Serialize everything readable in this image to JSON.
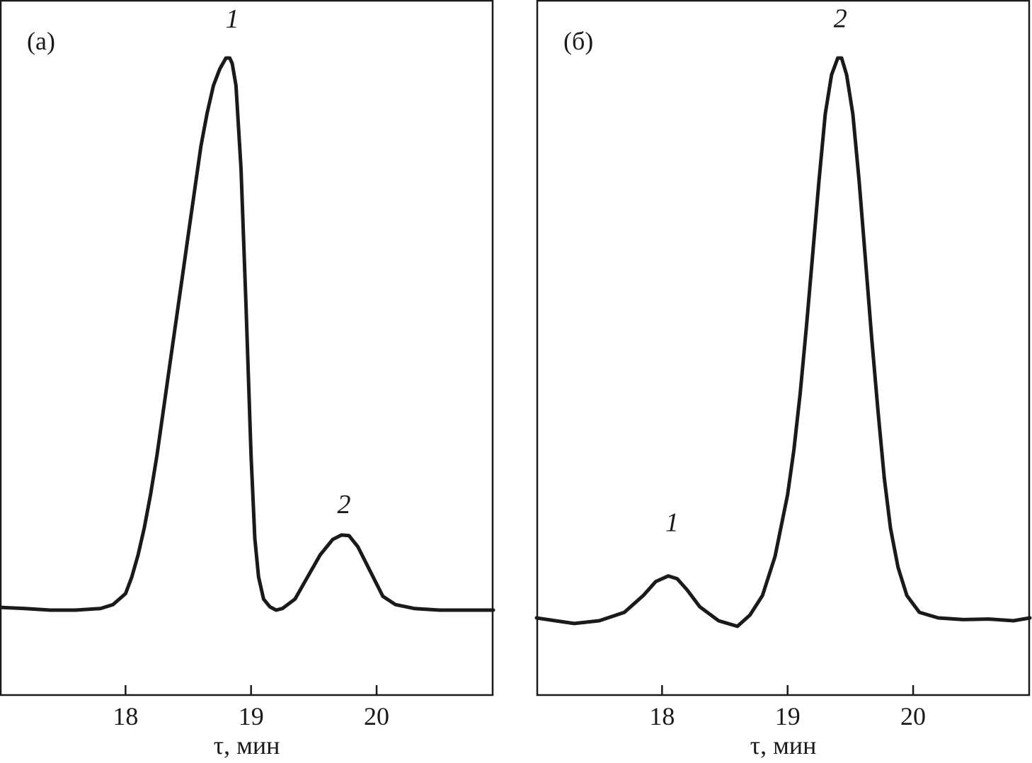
{
  "chart_data": [
    {
      "type": "line",
      "panel_label": "(а)",
      "xlabel": "τ, мин",
      "ylabel": "",
      "xlim": [
        17.0,
        20.93
      ],
      "ylim": [
        -0.22,
        1.0
      ],
      "x_ticks": [
        18,
        19,
        20
      ],
      "x_tick_labels": [
        "18",
        "19",
        "20"
      ],
      "grid": false,
      "peak_labels": [
        {
          "text": "1",
          "x": 18.85,
          "y": 1.04
        },
        {
          "text": "2",
          "x": 19.74,
          "y": 0.16
        }
      ],
      "series": [
        {
          "x": [
            17.0,
            17.2,
            17.4,
            17.6,
            17.8,
            17.9,
            18.0,
            18.05,
            18.1,
            18.15,
            18.2,
            18.25,
            18.3,
            18.35,
            18.4,
            18.45,
            18.5,
            18.55,
            18.6,
            18.65,
            18.7,
            18.75,
            18.8,
            18.83,
            18.85,
            18.88,
            18.92,
            18.96,
            19.0,
            19.03,
            19.06,
            19.1,
            19.15,
            19.2,
            19.25,
            19.35,
            19.45,
            19.55,
            19.65,
            19.72,
            19.78,
            19.85,
            19.95,
            20.05,
            20.15,
            20.3,
            20.5,
            20.7,
            20.93
          ],
          "y": [
            0.005,
            0.003,
            0.0,
            0.0,
            0.003,
            0.01,
            0.03,
            0.06,
            0.1,
            0.15,
            0.21,
            0.28,
            0.36,
            0.44,
            0.52,
            0.6,
            0.68,
            0.76,
            0.84,
            0.9,
            0.95,
            0.98,
            1.0,
            1.0,
            0.99,
            0.95,
            0.8,
            0.55,
            0.28,
            0.13,
            0.06,
            0.02,
            0.006,
            0.0,
            0.003,
            0.02,
            0.06,
            0.1,
            0.128,
            0.136,
            0.135,
            0.115,
            0.07,
            0.025,
            0.01,
            0.003,
            0.0,
            0.0,
            0.0
          ]
        }
      ]
    },
    {
      "type": "line",
      "panel_label": "(б)",
      "xlabel": "τ, мин",
      "ylabel": "",
      "xlim": [
        17.0,
        20.93
      ],
      "ylim": [
        -0.2,
        1.0
      ],
      "x_ticks": [
        18,
        19,
        20
      ],
      "x_tick_labels": [
        "18",
        "19",
        "20"
      ],
      "grid": false,
      "peak_labels": [
        {
          "text": "1",
          "x": 18.08,
          "y": 0.14
        },
        {
          "text": "2",
          "x": 19.42,
          "y": 1.04
        }
      ],
      "series": [
        {
          "x": [
            17.0,
            17.15,
            17.3,
            17.5,
            17.7,
            17.85,
            17.95,
            18.05,
            18.12,
            18.2,
            18.3,
            18.45,
            18.6,
            18.7,
            18.8,
            18.9,
            19.0,
            19.05,
            19.1,
            19.15,
            19.2,
            19.25,
            19.3,
            19.35,
            19.4,
            19.43,
            19.47,
            19.52,
            19.57,
            19.62,
            19.67,
            19.72,
            19.77,
            19.82,
            19.88,
            19.95,
            20.05,
            20.2,
            20.4,
            20.6,
            20.8,
            20.93
          ],
          "y": [
            0.0,
            -0.005,
            -0.01,
            -0.005,
            0.01,
            0.04,
            0.065,
            0.075,
            0.07,
            0.05,
            0.02,
            -0.005,
            -0.015,
            0.005,
            0.04,
            0.11,
            0.22,
            0.3,
            0.4,
            0.52,
            0.65,
            0.78,
            0.9,
            0.97,
            1.0,
            1.0,
            0.97,
            0.9,
            0.78,
            0.64,
            0.5,
            0.37,
            0.25,
            0.16,
            0.09,
            0.04,
            0.01,
            0.0,
            -0.003,
            -0.002,
            -0.005,
            0.0
          ]
        }
      ]
    }
  ]
}
